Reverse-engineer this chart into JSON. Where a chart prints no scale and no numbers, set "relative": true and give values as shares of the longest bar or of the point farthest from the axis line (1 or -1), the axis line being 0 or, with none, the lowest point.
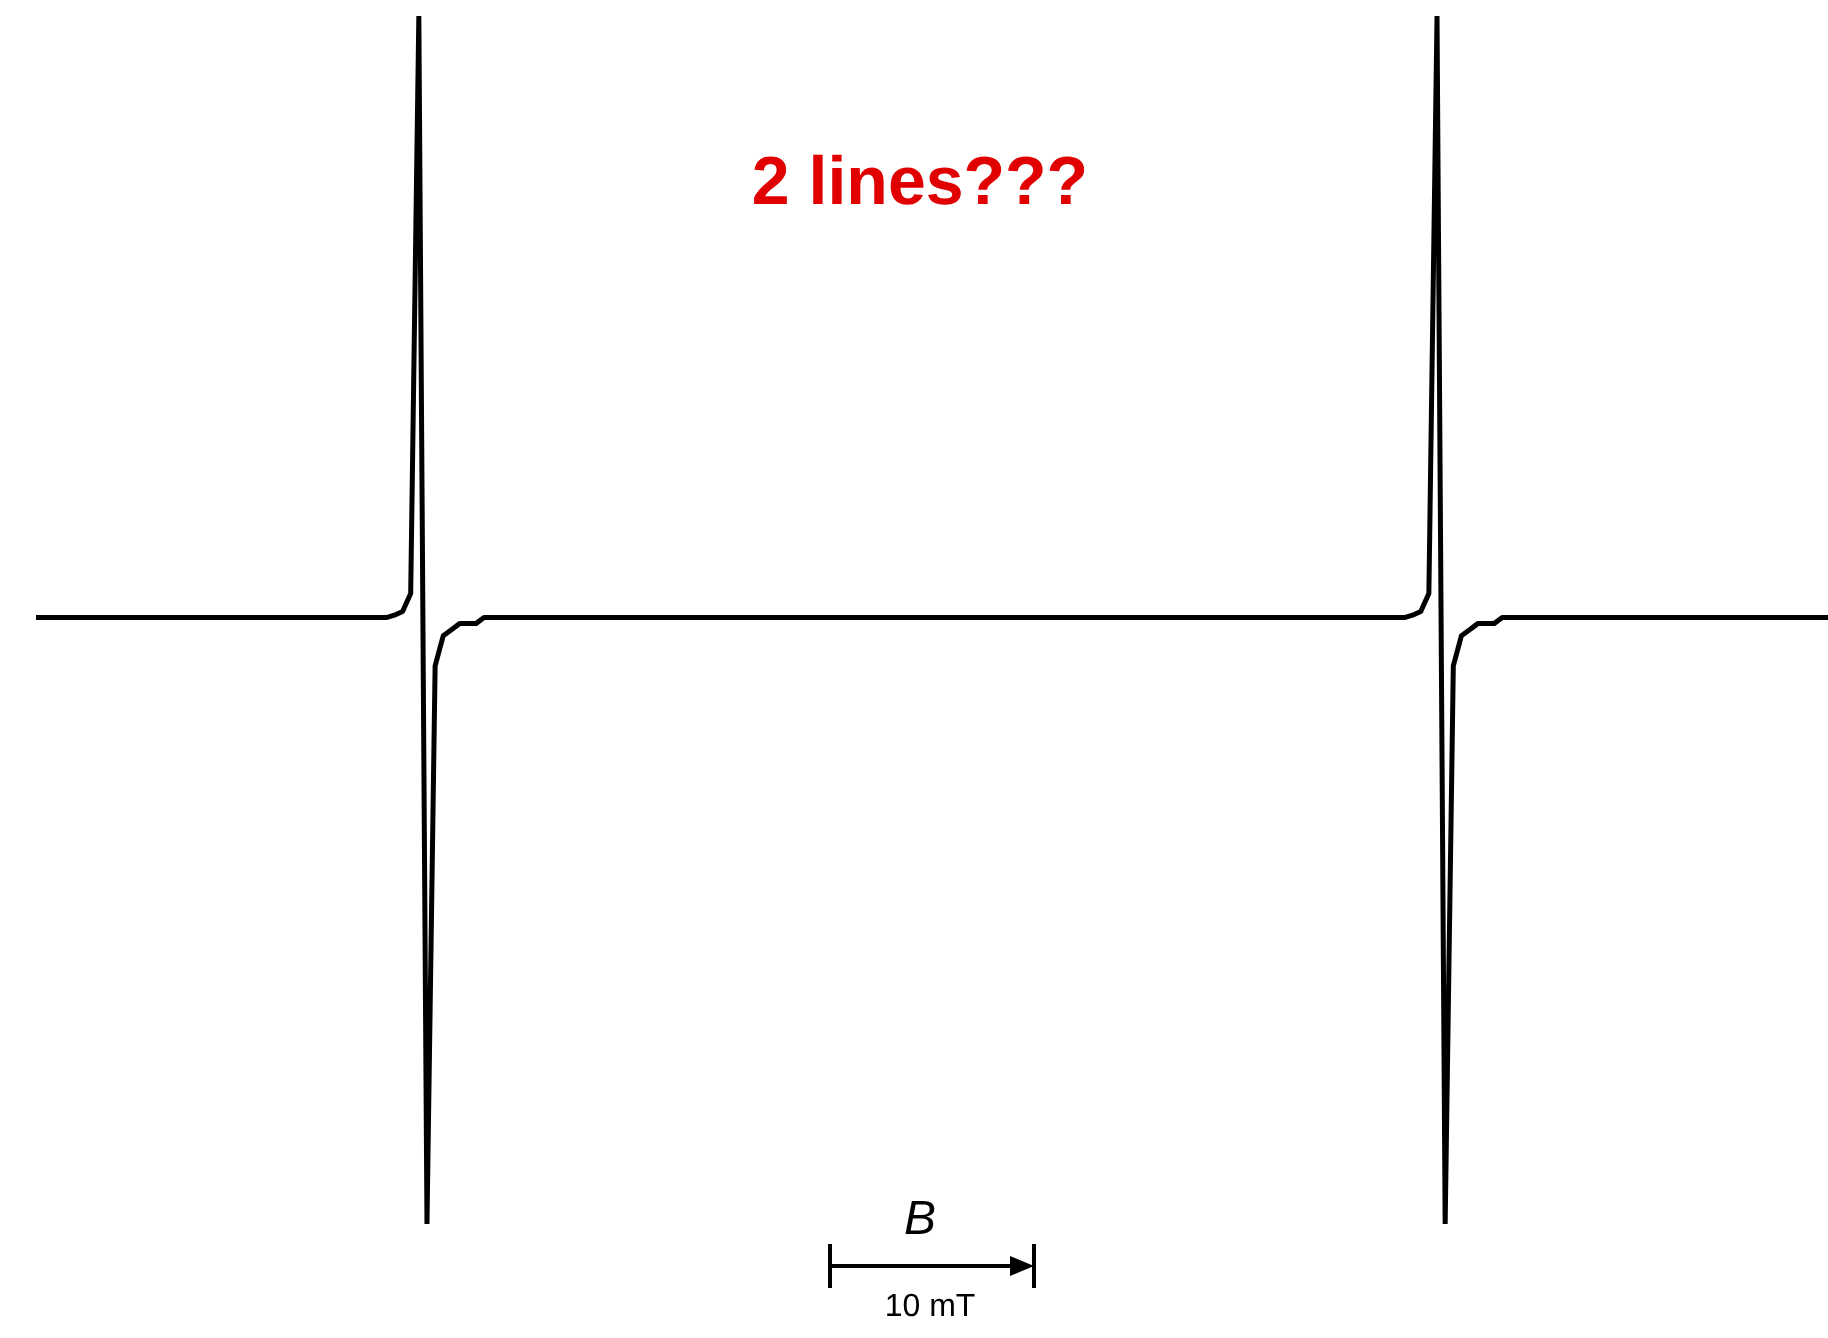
{
  "chart_data": {
    "type": "line",
    "relative": true,
    "xlabel": "B",
    "annotations": [
      "2 lines???",
      "10 mT"
    ],
    "legend": false,
    "marker": "none",
    "line_style": "solid",
    "categories": [
      null,
      null,
      null,
      null,
      null,
      null,
      null,
      null,
      null,
      null,
      null,
      null,
      null,
      null,
      null,
      null,
      null,
      null,
      null,
      null,
      null,
      null,
      null,
      null,
      null,
      null,
      null,
      null,
      null,
      null,
      null,
      null,
      null,
      null,
      null,
      null,
      null,
      null,
      null,
      null,
      null,
      null,
      null,
      null,
      null,
      null,
      null,
      null,
      null,
      null,
      null,
      null,
      null,
      null,
      null,
      null,
      null,
      null,
      null,
      null,
      null,
      null,
      null,
      null,
      null,
      null,
      null,
      null,
      null,
      null,
      null,
      null,
      null,
      null,
      null,
      null,
      null,
      null,
      null,
      null,
      null,
      null,
      null,
      null,
      null,
      null,
      null,
      null,
      null,
      null,
      null,
      null,
      null,
      null,
      null,
      null,
      null,
      null,
      null,
      null,
      null,
      null,
      null,
      null,
      null,
      null,
      null,
      null,
      null,
      null,
      null,
      null,
      null,
      null,
      null,
      null,
      null,
      null,
      null,
      null,
      null,
      null,
      null,
      null,
      null,
      null,
      null,
      null,
      null,
      null,
      null,
      null,
      null,
      null,
      null,
      null,
      null,
      null,
      null,
      null,
      null,
      null,
      null,
      null,
      null,
      null,
      null,
      null,
      null,
      null,
      null,
      null,
      null,
      null,
      null,
      null,
      null,
      null,
      null,
      null,
      null,
      null,
      null,
      null,
      null,
      null,
      null,
      null,
      null,
      null,
      null,
      null,
      null,
      null,
      null,
      null,
      null,
      null,
      null,
      null,
      null,
      null,
      null,
      null,
      null,
      null,
      null,
      null,
      null,
      null,
      null,
      null,
      null,
      null,
      null,
      null,
      null,
      null,
      null,
      null,
      null,
      null,
      null,
      null,
      null,
      null,
      null,
      null,
      null,
      null,
      null,
      null,
      null,
      null,
      null,
      null,
      null,
      null,
      null,
      null,
      null
    ],
    "series": [
      {
        "color": "#000000",
        "values": [
          0.502,
          0.502,
          0.502,
          0.502,
          0.502,
          0.502,
          0.502,
          0.502,
          0.502,
          0.502,
          0.502,
          0.502,
          0.502,
          0.502,
          0.502,
          0.502,
          0.502,
          0.502,
          0.502,
          0.502,
          0.502,
          0.502,
          0.502,
          0.502,
          0.502,
          0.502,
          0.502,
          0.502,
          0.502,
          0.502,
          0.502,
          0.502,
          0.502,
          0.502,
          0.502,
          0.502,
          0.502,
          0.502,
          0.502,
          0.502,
          0.502,
          0.502,
          0.502,
          0.502,
          0.504,
          0.507,
          0.522,
          1,
          0,
          0.462,
          0.487,
          0.492,
          0.497,
          0.497,
          0.497,
          0.502,
          0.502,
          0.502,
          0.502,
          0.502,
          0.502,
          0.502,
          0.502,
          0.502,
          0.502,
          0.502,
          0.502,
          0.502,
          0.502,
          0.502,
          0.502,
          0.502,
          0.502,
          0.502,
          0.502,
          0.502,
          0.502,
          0.502,
          0.502,
          0.502,
          0.502,
          0.502,
          0.502,
          0.502,
          0.502,
          0.502,
          0.502,
          0.502,
          0.502,
          0.502,
          0.502,
          0.502,
          0.502,
          0.502,
          0.502,
          0.502,
          0.502,
          0.502,
          0.502,
          0.502,
          0.502,
          0.502,
          0.502,
          0.502,
          0.502,
          0.502,
          0.502,
          0.502,
          0.502,
          0.502,
          0.502,
          0.502,
          0.502,
          0.502,
          0.502,
          0.502,
          0.502,
          0.502,
          0.502,
          0.502,
          0.502,
          0.502,
          0.502,
          0.502,
          0.502,
          0.502,
          0.502,
          0.502,
          0.502,
          0.502,
          0.502,
          0.502,
          0.502,
          0.502,
          0.502,
          0.502,
          0.502,
          0.502,
          0.502,
          0.502,
          0.502,
          0.502,
          0.502,
          0.502,
          0.502,
          0.502,
          0.502,
          0.502,
          0.502,
          0.502,
          0.502,
          0.502,
          0.502,
          0.502,
          0.502,
          0.502,
          0.502,
          0.502,
          0.502,
          0.502,
          0.502,
          0.502,
          0.502,
          0.502,
          0.502,
          0.502,
          0.502,
          0.502,
          0.502,
          0.504,
          0.507,
          0.522,
          1,
          0,
          0.462,
          0.487,
          0.492,
          0.497,
          0.497,
          0.497,
          0.502,
          0.502,
          0.502,
          0.502,
          0.502,
          0.502,
          0.502,
          0.502,
          0.502,
          0.502,
          0.502,
          0.502,
          0.502,
          0.502,
          0.502,
          0.502,
          0.502,
          0.502,
          0.502,
          0.502,
          0.502,
          0.502,
          0.502,
          0.502,
          0.502,
          0.502,
          0.502,
          0.502,
          0.502,
          0.502,
          0.502,
          0.502,
          0.502,
          0.502,
          0.502,
          0.502,
          0.502,
          0.502,
          0.502,
          0.502,
          0.502
        ]
      }
    ]
  }
}
